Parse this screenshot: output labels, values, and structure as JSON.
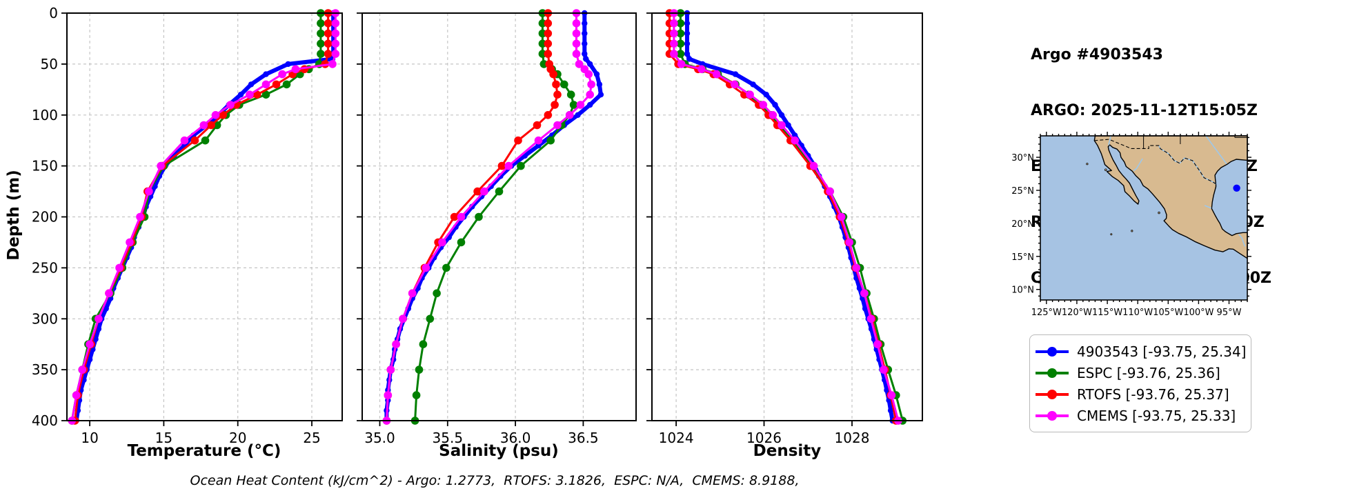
{
  "title_block": {
    "lines": [
      "Argo #4903543",
      "ARGO: 2025-11-12T15:05Z",
      "ESPC : 2025-11-12T15:00Z",
      "RTOFS: 2025-11-12T18:00Z",
      "CMEMS: 2025-11-12T18:00Z"
    ]
  },
  "footer": "Ocean Heat Content (kJ/cm^2) - Argo: 1.2773,  RTOFS: 3.1826,  ESPC: N/A,  CMEMS: 8.9188,",
  "style": {
    "grid_color": "#c4c4c4",
    "spine_color": "#000000",
    "background": "#ffffff"
  },
  "legend": {
    "items": [
      {
        "label": "4903543 [-93.75, 25.34]",
        "color": "#0000ff"
      },
      {
        "label": "ESPC [-93.76, 25.36]",
        "color": "#008000"
      },
      {
        "label": "RTOFS [-93.76, 25.37]",
        "color": "#ff0000"
      },
      {
        "label": "CMEMS [-93.75, 25.33]",
        "color": "#ff00ff"
      }
    ]
  },
  "map": {
    "extent": {
      "lon_min": -126,
      "lon_max": -92,
      "lat_min": 8.4,
      "lat_max": 33.25
    },
    "lat_ticks": [
      {
        "value": 30,
        "label": "30°N"
      },
      {
        "value": 25,
        "label": "25°N"
      },
      {
        "value": 20,
        "label": "20°N"
      },
      {
        "value": 15,
        "label": "15°N"
      },
      {
        "value": 10,
        "label": "10°N"
      }
    ],
    "lon_ticks": [
      {
        "value": -125,
        "label": "125°W"
      },
      {
        "value": -120,
        "label": "120°W"
      },
      {
        "value": -115,
        "label": "115°W"
      },
      {
        "value": -110,
        "label": "110°W"
      },
      {
        "value": -105,
        "label": "105°W"
      },
      {
        "value": -100,
        "label": "100°W"
      },
      {
        "value": -95,
        "label": "95°W"
      }
    ],
    "minor_step_deg": 1,
    "float_marker": {
      "lon": -93.75,
      "lat": 25.34,
      "color": "#0000ff"
    },
    "land_color": "#d8ba90",
    "ocean_color": "#a6c3e3",
    "river_color": "#9ec8ea"
  },
  "depth_axis": {
    "label": "Depth (m)",
    "lim": [
      0,
      400
    ],
    "tick_values": [
      0,
      50,
      100,
      150,
      200,
      250,
      300,
      350,
      400
    ],
    "tick_labels": [
      "0",
      "50",
      "100",
      "150",
      "200",
      "250",
      "300",
      "350",
      "400"
    ]
  },
  "chart_data": [
    {
      "type": "line",
      "id": "temperature",
      "xlabel": "Temperature (°C)",
      "ylabel": "Depth (m)",
      "xlim": [
        8.46,
        27.05
      ],
      "ylim": [
        0,
        400
      ],
      "xtick_values": [
        10,
        15,
        20,
        25
      ],
      "xtick_labels": [
        "10",
        "15",
        "20",
        "25"
      ],
      "grid": true,
      "series": [
        {
          "name": "4903543",
          "color": "#0000ff",
          "depth": [
            0,
            10,
            20,
            30,
            40,
            45,
            50,
            60,
            70,
            80,
            90,
            100,
            110,
            120,
            130,
            140,
            150,
            160,
            170,
            180,
            190,
            200,
            210,
            220,
            230,
            240,
            250,
            260,
            270,
            280,
            290,
            300,
            310,
            320,
            330,
            340,
            350,
            360,
            370,
            380,
            390,
            400
          ],
          "values": [
            26.45,
            26.45,
            26.45,
            26.45,
            26.45,
            26.4,
            23.4,
            21.9,
            20.9,
            20.2,
            19.4,
            18.7,
            17.9,
            17.0,
            16.4,
            15.7,
            15.1,
            14.7,
            14.4,
            14.1,
            13.8,
            13.6,
            13.3,
            13.0,
            12.8,
            12.5,
            12.2,
            11.9,
            11.6,
            11.4,
            11.1,
            10.8,
            10.6,
            10.4,
            10.2,
            10.0,
            9.8,
            9.6,
            9.4,
            9.3,
            9.2,
            9.1
          ]
        },
        {
          "name": "ESPC",
          "color": "#008000",
          "depth": [
            0,
            10,
            20,
            30,
            40,
            50,
            55,
            60,
            70,
            80,
            90,
            100,
            110,
            125,
            150,
            175,
            200,
            225,
            250,
            275,
            300,
            325,
            350,
            375,
            400
          ],
          "values": [
            25.6,
            25.6,
            25.6,
            25.6,
            25.6,
            25.5,
            24.8,
            24.2,
            23.3,
            21.9,
            20.1,
            19.2,
            18.6,
            17.8,
            15.0,
            14.0,
            13.7,
            12.9,
            12.2,
            11.4,
            10.4,
            9.9,
            9.5,
            9.1,
            8.8
          ]
        },
        {
          "name": "RTOFS",
          "color": "#ff0000",
          "depth": [
            0,
            10,
            20,
            30,
            40,
            50,
            55,
            60,
            70,
            80,
            90,
            100,
            110,
            125,
            150,
            175,
            200,
            225,
            250,
            275,
            300,
            325,
            350,
            375,
            400
          ],
          "values": [
            26.1,
            26.1,
            26.1,
            26.1,
            26.1,
            25.9,
            24.5,
            23.7,
            22.6,
            21.3,
            19.9,
            19.0,
            18.2,
            17.1,
            14.9,
            13.9,
            13.5,
            12.8,
            12.1,
            11.3,
            10.6,
            10.1,
            9.6,
            9.2,
            9.0
          ]
        },
        {
          "name": "CMEMS",
          "color": "#ff00ff",
          "depth": [
            0,
            10,
            20,
            30,
            40,
            50,
            55,
            60,
            70,
            80,
            90,
            100,
            110,
            125,
            150,
            175,
            200,
            225,
            250,
            275,
            300,
            325,
            350,
            375,
            400
          ],
          "values": [
            26.6,
            26.6,
            26.6,
            26.6,
            26.6,
            26.4,
            23.9,
            23.0,
            21.9,
            20.8,
            19.5,
            18.5,
            17.7,
            16.4,
            14.8,
            14.0,
            13.4,
            12.7,
            12.0,
            11.3,
            10.6,
            10.0,
            9.5,
            9.1,
            8.8
          ]
        }
      ]
    },
    {
      "type": "line",
      "id": "salinity",
      "xlabel": "Salinity (psu)",
      "ylabel": "Depth (m)",
      "xlim": [
        34.87,
        36.89
      ],
      "ylim": [
        0,
        400
      ],
      "xtick_values": [
        35.0,
        35.5,
        36.0,
        36.5
      ],
      "xtick_labels": [
        "35.0",
        "35.5",
        "36.0",
        "36.5"
      ],
      "grid": true,
      "series": [
        {
          "name": "4903543",
          "color": "#0000ff",
          "depth": [
            0,
            10,
            20,
            30,
            40,
            45,
            50,
            60,
            70,
            80,
            90,
            100,
            110,
            120,
            130,
            140,
            150,
            160,
            170,
            180,
            190,
            200,
            210,
            220,
            230,
            240,
            250,
            260,
            270,
            280,
            290,
            300,
            310,
            320,
            330,
            340,
            350,
            360,
            370,
            380,
            390,
            400
          ],
          "values": [
            36.51,
            36.51,
            36.51,
            36.51,
            36.51,
            36.52,
            36.55,
            36.6,
            36.62,
            36.63,
            36.55,
            36.46,
            36.36,
            36.27,
            36.17,
            36.07,
            35.97,
            35.89,
            35.82,
            35.75,
            35.68,
            35.62,
            35.56,
            35.51,
            35.45,
            35.4,
            35.36,
            35.31,
            35.28,
            35.24,
            35.21,
            35.18,
            35.15,
            35.13,
            35.11,
            35.1,
            35.08,
            35.07,
            35.06,
            35.06,
            35.05,
            35.05
          ]
        },
        {
          "name": "ESPC",
          "color": "#008000",
          "depth": [
            0,
            10,
            20,
            30,
            40,
            50,
            55,
            60,
            70,
            80,
            90,
            100,
            110,
            125,
            150,
            175,
            200,
            225,
            250,
            275,
            300,
            325,
            350,
            375,
            400
          ],
          "values": [
            36.2,
            36.2,
            36.2,
            36.2,
            36.2,
            36.21,
            36.27,
            36.31,
            36.36,
            36.41,
            36.43,
            36.4,
            36.34,
            36.26,
            36.04,
            35.88,
            35.73,
            35.6,
            35.49,
            35.42,
            35.37,
            35.32,
            35.29,
            35.27,
            35.26
          ]
        },
        {
          "name": "RTOFS",
          "color": "#ff0000",
          "depth": [
            0,
            10,
            20,
            30,
            40,
            50,
            55,
            60,
            70,
            80,
            90,
            100,
            110,
            125,
            150,
            175,
            200,
            225,
            250,
            275,
            300,
            325,
            350,
            375,
            400
          ],
          "values": [
            36.24,
            36.24,
            36.24,
            36.24,
            36.24,
            36.25,
            36.26,
            36.28,
            36.3,
            36.31,
            36.29,
            36.24,
            36.16,
            36.02,
            35.9,
            35.72,
            35.55,
            35.43,
            35.33,
            35.24,
            35.17,
            35.12,
            35.08,
            35.06,
            35.05
          ]
        },
        {
          "name": "CMEMS",
          "color": "#ff00ff",
          "depth": [
            0,
            10,
            20,
            30,
            40,
            50,
            55,
            60,
            70,
            80,
            90,
            100,
            110,
            125,
            150,
            175,
            200,
            225,
            250,
            275,
            300,
            325,
            350,
            375,
            400
          ],
          "values": [
            36.45,
            36.45,
            36.45,
            36.45,
            36.45,
            36.47,
            36.51,
            36.54,
            36.56,
            36.55,
            36.48,
            36.4,
            36.31,
            36.17,
            35.95,
            35.77,
            35.6,
            35.46,
            35.34,
            35.24,
            35.17,
            35.12,
            35.08,
            35.06,
            35.05
          ]
        }
      ]
    },
    {
      "type": "line",
      "id": "density",
      "xlabel": "Density",
      "ylabel": "Depth (m)",
      "xlim": [
        1023.45,
        1029.6
      ],
      "ylim": [
        0,
        400
      ],
      "xtick_values": [
        1024,
        1026,
        1028
      ],
      "xtick_labels": [
        "1024",
        "1026",
        "1028"
      ],
      "grid": true,
      "series": [
        {
          "name": "4903543",
          "color": "#0000ff",
          "depth": [
            0,
            10,
            20,
            30,
            40,
            45,
            50,
            60,
            70,
            80,
            90,
            100,
            110,
            120,
            130,
            140,
            150,
            160,
            170,
            180,
            190,
            200,
            210,
            220,
            230,
            240,
            250,
            260,
            270,
            280,
            290,
            300,
            310,
            320,
            330,
            340,
            350,
            360,
            370,
            380,
            390,
            400
          ],
          "values": [
            1024.25,
            1024.25,
            1024.25,
            1024.25,
            1024.25,
            1024.3,
            1024.6,
            1025.35,
            1025.75,
            1026.05,
            1026.25,
            1026.4,
            1026.55,
            1026.7,
            1026.85,
            1027.0,
            1027.15,
            1027.25,
            1027.38,
            1027.5,
            1027.6,
            1027.7,
            1027.78,
            1027.85,
            1027.92,
            1027.98,
            1028.04,
            1028.1,
            1028.17,
            1028.24,
            1028.3,
            1028.37,
            1028.44,
            1028.5,
            1028.56,
            1028.62,
            1028.68,
            1028.74,
            1028.79,
            1028.84,
            1028.88,
            1028.92
          ]
        },
        {
          "name": "ESPC",
          "color": "#008000",
          "depth": [
            0,
            10,
            20,
            30,
            40,
            50,
            55,
            60,
            70,
            80,
            90,
            100,
            110,
            125,
            150,
            175,
            200,
            225,
            250,
            275,
            300,
            325,
            350,
            375,
            400
          ],
          "values": [
            1024.1,
            1024.1,
            1024.1,
            1024.1,
            1024.1,
            1024.2,
            1024.6,
            1024.95,
            1025.35,
            1025.65,
            1025.92,
            1026.15,
            1026.35,
            1026.65,
            1027.1,
            1027.5,
            1027.8,
            1028.0,
            1028.18,
            1028.33,
            1028.5,
            1028.65,
            1028.82,
            1029.0,
            1029.15
          ]
        },
        {
          "name": "RTOFS",
          "color": "#ff0000",
          "depth": [
            0,
            10,
            20,
            30,
            40,
            50,
            55,
            60,
            70,
            80,
            90,
            100,
            110,
            125,
            150,
            175,
            200,
            225,
            250,
            275,
            300,
            325,
            350,
            375,
            400
          ],
          "values": [
            1023.85,
            1023.85,
            1023.85,
            1023.85,
            1023.85,
            1024.05,
            1024.5,
            1024.85,
            1025.22,
            1025.55,
            1025.88,
            1026.1,
            1026.3,
            1026.6,
            1027.05,
            1027.45,
            1027.72,
            1027.92,
            1028.08,
            1028.28,
            1028.45,
            1028.6,
            1028.75,
            1028.88,
            1029.0
          ]
        },
        {
          "name": "CMEMS",
          "color": "#ff00ff",
          "depth": [
            0,
            10,
            20,
            30,
            40,
            50,
            55,
            60,
            70,
            80,
            90,
            100,
            110,
            125,
            150,
            175,
            200,
            225,
            250,
            275,
            300,
            325,
            350,
            375,
            400
          ],
          "values": [
            1023.95,
            1023.95,
            1023.95,
            1023.95,
            1023.95,
            1024.12,
            1024.58,
            1024.92,
            1025.33,
            1025.68,
            1025.98,
            1026.2,
            1026.4,
            1026.7,
            1027.13,
            1027.5,
            1027.76,
            1027.94,
            1028.1,
            1028.28,
            1028.43,
            1028.58,
            1028.72,
            1028.9,
            1029.05
          ]
        }
      ]
    }
  ]
}
